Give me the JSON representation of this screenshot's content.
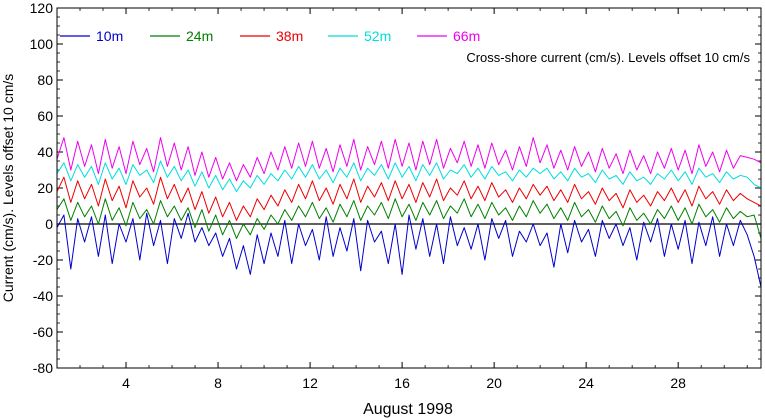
{
  "chart_data": {
    "type": "line",
    "annotation": "Cross-shore current (cm/s). Levels offset 10 cm/s",
    "xlabel": "August 1998",
    "ylabel": "Current (cm/s). Levels offset 10 cm/s",
    "xlim": [
      1,
      31.6
    ],
    "ylim": [
      -80,
      120
    ],
    "xticks": [
      4,
      8,
      12,
      16,
      20,
      24,
      28
    ],
    "yticks": [
      -80,
      -60,
      -40,
      -20,
      0,
      20,
      40,
      60,
      80,
      100,
      120
    ],
    "zero_line": true,
    "grid": false,
    "legend_position": "top-left",
    "series": [
      {
        "name": "10m",
        "color": "#0000cc",
        "x": [
          1.0,
          1.3,
          1.6,
          1.9,
          2.2,
          2.5,
          2.8,
          3.1,
          3.4,
          3.7,
          4.0,
          4.3,
          4.6,
          4.9,
          5.2,
          5.5,
          5.8,
          6.1,
          6.4,
          6.7,
          7.0,
          7.3,
          7.6,
          7.9,
          8.2,
          8.5,
          8.8,
          9.1,
          9.4,
          9.7,
          10.0,
          10.3,
          10.6,
          10.9,
          11.2,
          11.5,
          11.8,
          12.1,
          12.4,
          12.7,
          13.0,
          13.3,
          13.6,
          13.9,
          14.2,
          14.5,
          14.8,
          15.1,
          15.4,
          15.7,
          16.0,
          16.3,
          16.6,
          16.9,
          17.2,
          17.5,
          17.8,
          18.1,
          18.4,
          18.7,
          19.0,
          19.3,
          19.6,
          19.9,
          20.2,
          20.5,
          20.8,
          21.1,
          21.4,
          21.7,
          22.0,
          22.3,
          22.6,
          22.9,
          23.2,
          23.5,
          23.8,
          24.1,
          24.4,
          24.7,
          25.0,
          25.3,
          25.6,
          25.9,
          26.2,
          26.5,
          26.8,
          27.1,
          27.4,
          27.7,
          28.0,
          28.3,
          28.6,
          28.9,
          29.2,
          29.5,
          29.8,
          30.1,
          30.4,
          30.7,
          31.0,
          31.3,
          31.6
        ],
        "values": [
          -2,
          5,
          -25,
          3,
          -10,
          4,
          -18,
          5,
          -22,
          0,
          -10,
          3,
          -20,
          6,
          -12,
          2,
          -22,
          3,
          -8,
          6,
          -10,
          -2,
          -12,
          -5,
          -18,
          -8,
          -25,
          -12,
          -28,
          -6,
          -22,
          -5,
          -18,
          2,
          -22,
          0,
          -12,
          -3,
          -20,
          4,
          -18,
          -2,
          -15,
          3,
          -26,
          2,
          -10,
          -4,
          -22,
          0,
          -28,
          5,
          -14,
          3,
          -18,
          0,
          -22,
          4,
          -12,
          -2,
          -14,
          0,
          -20,
          3,
          -8,
          2,
          -18,
          -4,
          -10,
          0,
          -12,
          -5,
          -24,
          0,
          -16,
          2,
          -10,
          -3,
          -18,
          2,
          -8,
          0,
          -12,
          -2,
          -20,
          1,
          -10,
          3,
          -18,
          0,
          -14,
          2,
          -22,
          1,
          -12,
          4,
          -18,
          0,
          -12,
          2,
          -6,
          -18,
          -35
        ]
      },
      {
        "name": "24m",
        "color": "#008000",
        "x": [
          1.0,
          1.3,
          1.6,
          1.9,
          2.2,
          2.5,
          2.8,
          3.1,
          3.4,
          3.7,
          4.0,
          4.3,
          4.6,
          4.9,
          5.2,
          5.5,
          5.8,
          6.1,
          6.4,
          6.7,
          7.0,
          7.3,
          7.6,
          7.9,
          8.2,
          8.5,
          8.8,
          9.1,
          9.4,
          9.7,
          10.0,
          10.3,
          10.6,
          10.9,
          11.2,
          11.5,
          11.8,
          12.1,
          12.4,
          12.7,
          13.0,
          13.3,
          13.6,
          13.9,
          14.2,
          14.5,
          14.8,
          15.1,
          15.4,
          15.7,
          16.0,
          16.3,
          16.6,
          16.9,
          17.2,
          17.5,
          17.8,
          18.1,
          18.4,
          18.7,
          19.0,
          19.3,
          19.6,
          19.9,
          20.2,
          20.5,
          20.8,
          21.1,
          21.4,
          21.7,
          22.0,
          22.3,
          22.6,
          22.9,
          23.2,
          23.5,
          23.8,
          24.1,
          24.4,
          24.7,
          25.0,
          25.3,
          25.6,
          25.9,
          26.2,
          26.5,
          26.8,
          27.1,
          27.4,
          27.7,
          28.0,
          28.3,
          28.6,
          28.9,
          29.2,
          29.5,
          29.8,
          30.1,
          30.4,
          30.7,
          31.0,
          31.3,
          31.6
        ],
        "values": [
          8,
          14,
          2,
          12,
          4,
          10,
          0,
          14,
          2,
          9,
          -1,
          12,
          3,
          8,
          0,
          13,
          4,
          10,
          2,
          9,
          -2,
          8,
          -4,
          5,
          -6,
          2,
          -8,
          0,
          -6,
          3,
          -3,
          5,
          0,
          8,
          2,
          10,
          4,
          12,
          3,
          9,
          1,
          11,
          4,
          13,
          2,
          10,
          5,
          12,
          3,
          14,
          4,
          11,
          2,
          12,
          5,
          13,
          3,
          10,
          6,
          14,
          4,
          11,
          3,
          12,
          5,
          9,
          2,
          10,
          4,
          13,
          6,
          11,
          3,
          9,
          2,
          12,
          4,
          8,
          1,
          10,
          3,
          7,
          -1,
          9,
          2,
          6,
          0,
          8,
          3,
          10,
          2,
          9,
          0,
          11,
          4,
          8,
          1,
          9,
          3,
          7,
          4,
          5,
          -8
        ]
      },
      {
        "name": "38m",
        "color": "#ee0000",
        "x": [
          1.0,
          1.3,
          1.6,
          1.9,
          2.2,
          2.5,
          2.8,
          3.1,
          3.4,
          3.7,
          4.0,
          4.3,
          4.6,
          4.9,
          5.2,
          5.5,
          5.8,
          6.1,
          6.4,
          6.7,
          7.0,
          7.3,
          7.6,
          7.9,
          8.2,
          8.5,
          8.8,
          9.1,
          9.4,
          9.7,
          10.0,
          10.3,
          10.6,
          10.9,
          11.2,
          11.5,
          11.8,
          12.1,
          12.4,
          12.7,
          13.0,
          13.3,
          13.6,
          13.9,
          14.2,
          14.5,
          14.8,
          15.1,
          15.4,
          15.7,
          16.0,
          16.3,
          16.6,
          16.9,
          17.2,
          17.5,
          17.8,
          18.1,
          18.4,
          18.7,
          19.0,
          19.3,
          19.6,
          19.9,
          20.2,
          20.5,
          20.8,
          21.1,
          21.4,
          21.7,
          22.0,
          22.3,
          22.6,
          22.9,
          23.2,
          23.5,
          23.8,
          24.1,
          24.4,
          24.7,
          25.0,
          25.3,
          25.6,
          25.9,
          26.2,
          26.5,
          26.8,
          27.1,
          27.4,
          27.7,
          28.0,
          28.3,
          28.6,
          28.9,
          29.2,
          29.5,
          29.8,
          30.1,
          30.4,
          30.7,
          31.0,
          31.3,
          31.6
        ],
        "values": [
          18,
          26,
          12,
          24,
          14,
          22,
          10,
          25,
          13,
          21,
          9,
          24,
          15,
          20,
          11,
          26,
          14,
          22,
          12,
          20,
          8,
          18,
          6,
          15,
          4,
          12,
          2,
          10,
          4,
          14,
          8,
          16,
          10,
          19,
          12,
          22,
          14,
          24,
          13,
          20,
          11,
          22,
          14,
          25,
          12,
          21,
          15,
          23,
          13,
          24,
          14,
          22,
          12,
          23,
          15,
          25,
          13,
          20,
          16,
          24,
          14,
          21,
          13,
          23,
          15,
          19,
          12,
          20,
          14,
          22,
          16,
          21,
          13,
          19,
          12,
          22,
          14,
          18,
          11,
          20,
          13,
          17,
          9,
          19,
          12,
          16,
          10,
          18,
          13,
          20,
          12,
          19,
          10,
          21,
          14,
          18,
          11,
          19,
          13,
          17,
          14,
          12,
          10
        ]
      },
      {
        "name": "52m",
        "color": "#00dddd",
        "x": [
          1.0,
          1.3,
          1.6,
          1.9,
          2.2,
          2.5,
          2.8,
          3.1,
          3.4,
          3.7,
          4.0,
          4.3,
          4.6,
          4.9,
          5.2,
          5.5,
          5.8,
          6.1,
          6.4,
          6.7,
          7.0,
          7.3,
          7.6,
          7.9,
          8.2,
          8.5,
          8.8,
          9.1,
          9.4,
          9.7,
          10.0,
          10.3,
          10.6,
          10.9,
          11.2,
          11.5,
          11.8,
          12.1,
          12.4,
          12.7,
          13.0,
          13.3,
          13.6,
          13.9,
          14.2,
          14.5,
          14.8,
          15.1,
          15.4,
          15.7,
          16.0,
          16.3,
          16.6,
          16.9,
          17.2,
          17.5,
          17.8,
          18.1,
          18.4,
          18.7,
          19.0,
          19.3,
          19.6,
          19.9,
          20.2,
          20.5,
          20.8,
          21.1,
          21.4,
          21.7,
          22.0,
          22.3,
          22.6,
          22.9,
          23.2,
          23.5,
          23.8,
          24.1,
          24.4,
          24.7,
          25.0,
          25.3,
          25.6,
          25.9,
          26.2,
          26.5,
          26.8,
          27.1,
          27.4,
          27.7,
          28.0,
          28.3,
          28.6,
          28.9,
          29.2,
          29.5,
          29.8,
          30.1,
          30.4,
          30.7,
          31.0,
          31.3,
          31.6
        ],
        "values": [
          28,
          34,
          24,
          33,
          26,
          32,
          22,
          34,
          25,
          31,
          22,
          33,
          27,
          30,
          23,
          35,
          26,
          32,
          24,
          30,
          21,
          29,
          20,
          27,
          19,
          25,
          18,
          24,
          20,
          27,
          22,
          28,
          24,
          30,
          25,
          32,
          26,
          33,
          25,
          30,
          23,
          31,
          26,
          34,
          24,
          31,
          27,
          33,
          25,
          34,
          26,
          32,
          24,
          33,
          27,
          34,
          25,
          30,
          28,
          33,
          26,
          31,
          25,
          32,
          27,
          29,
          24,
          30,
          26,
          31,
          28,
          31,
          25,
          29,
          24,
          31,
          26,
          28,
          23,
          30,
          25,
          27,
          22,
          29,
          24,
          26,
          22,
          28,
          25,
          30,
          24,
          29,
          22,
          31,
          26,
          28,
          23,
          29,
          25,
          27,
          26,
          22,
          20
        ]
      },
      {
        "name": "66m",
        "color": "#ee00ee",
        "x": [
          1.0,
          1.3,
          1.6,
          1.9,
          2.2,
          2.5,
          2.8,
          3.1,
          3.4,
          3.7,
          4.0,
          4.3,
          4.6,
          4.9,
          5.2,
          5.5,
          5.8,
          6.1,
          6.4,
          6.7,
          7.0,
          7.3,
          7.6,
          7.9,
          8.2,
          8.5,
          8.8,
          9.1,
          9.4,
          9.7,
          10.0,
          10.3,
          10.6,
          10.9,
          11.2,
          11.5,
          11.8,
          12.1,
          12.4,
          12.7,
          13.0,
          13.3,
          13.6,
          13.9,
          14.2,
          14.5,
          14.8,
          15.1,
          15.4,
          15.7,
          16.0,
          16.3,
          16.6,
          16.9,
          17.2,
          17.5,
          17.8,
          18.1,
          18.4,
          18.7,
          19.0,
          19.3,
          19.6,
          19.9,
          20.2,
          20.5,
          20.8,
          21.1,
          21.4,
          21.7,
          22.0,
          22.3,
          22.6,
          22.9,
          23.2,
          23.5,
          23.8,
          24.1,
          24.4,
          24.7,
          25.0,
          25.3,
          25.6,
          25.9,
          26.2,
          26.5,
          26.8,
          27.1,
          27.4,
          27.7,
          28.0,
          28.3,
          28.6,
          28.9,
          29.2,
          29.5,
          29.8,
          30.1,
          30.4,
          30.7,
          31.0,
          31.3,
          31.6
        ],
        "values": [
          36,
          48,
          30,
          46,
          32,
          44,
          28,
          47,
          31,
          43,
          28,
          46,
          33,
          42,
          29,
          48,
          32,
          45,
          30,
          43,
          27,
          40,
          26,
          37,
          25,
          34,
          24,
          33,
          26,
          37,
          28,
          40,
          30,
          43,
          31,
          45,
          32,
          46,
          31,
          42,
          29,
          44,
          32,
          47,
          30,
          43,
          33,
          46,
          31,
          47,
          32,
          45,
          30,
          46,
          33,
          47,
          31,
          42,
          34,
          46,
          32,
          44,
          31,
          45,
          33,
          41,
          30,
          43,
          32,
          48,
          34,
          44,
          31,
          41,
          30,
          43,
          32,
          40,
          29,
          42,
          31,
          39,
          28,
          41,
          30,
          38,
          28,
          40,
          31,
          42,
          30,
          41,
          28,
          44,
          32,
          40,
          29,
          41,
          31,
          38,
          37,
          36,
          34
        ]
      }
    ]
  }
}
